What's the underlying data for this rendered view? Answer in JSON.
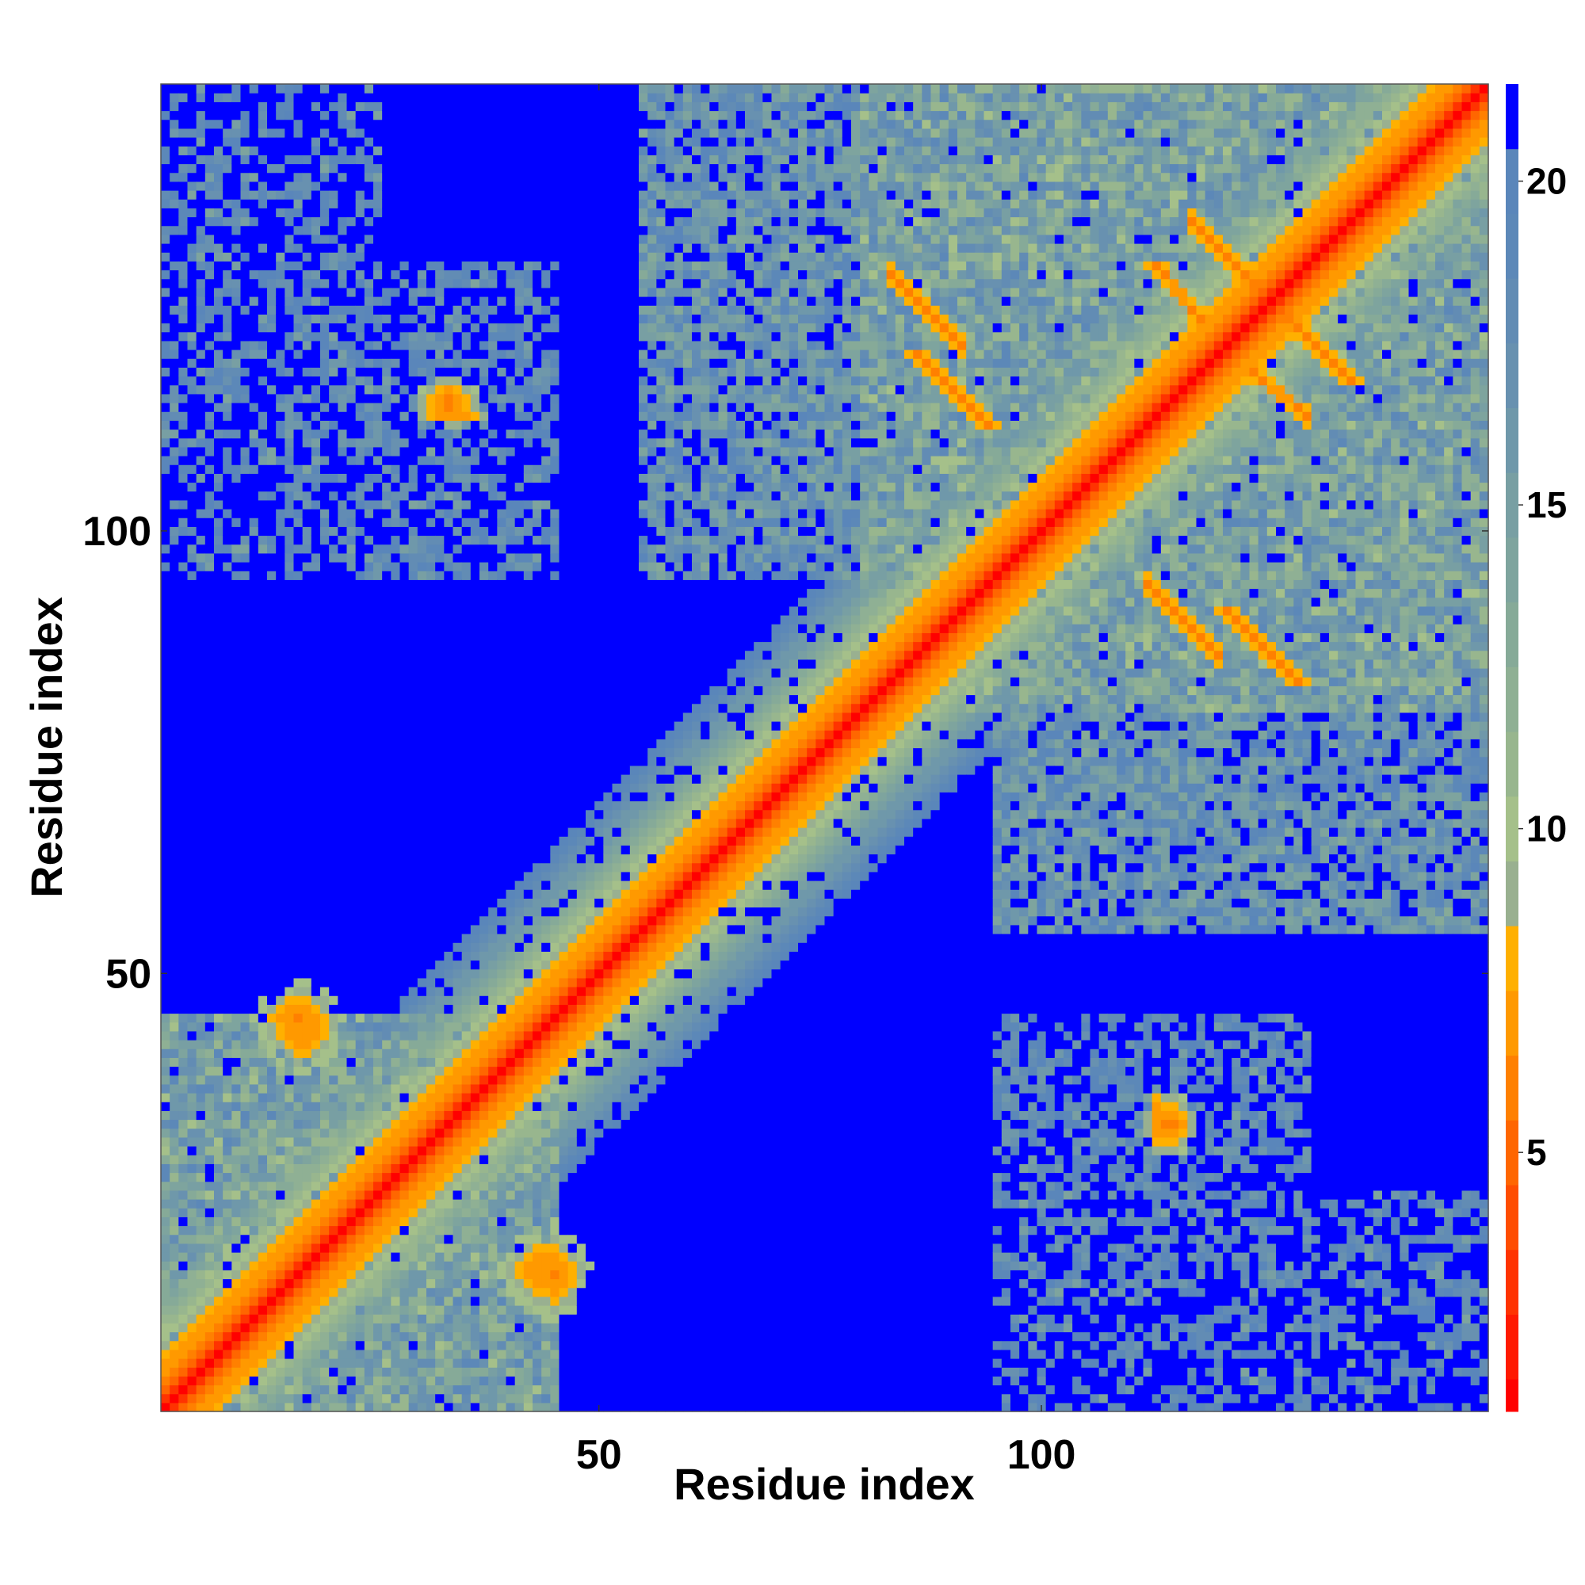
{
  "chart_data": {
    "type": "heatmap",
    "title": "",
    "xlabel": "Residue index",
    "ylabel": "Residue index",
    "n_residues": 150,
    "xlim": [
      1,
      150
    ],
    "ylim": [
      1,
      150
    ],
    "x_ticks": [
      50,
      100
    ],
    "y_ticks": [
      50,
      100
    ],
    "colorbar": {
      "range": [
        1,
        21.5
      ],
      "ticks": [
        5,
        10,
        15,
        20
      ],
      "levels": [
        {
          "max": 1.5,
          "color": "#ff0000"
        },
        {
          "max": 2.5,
          "color": "#ff1a00"
        },
        {
          "max": 3.5,
          "color": "#ff3300"
        },
        {
          "max": 4.5,
          "color": "#ff4d00"
        },
        {
          "max": 5.5,
          "color": "#ff6600"
        },
        {
          "max": 6.5,
          "color": "#ff8000"
        },
        {
          "max": 7.5,
          "color": "#ff9900"
        },
        {
          "max": 8.5,
          "color": "#ffb000"
        },
        {
          "max": 9.5,
          "color": "#99b090"
        },
        {
          "max": 10.5,
          "color": "#a5c08a"
        },
        {
          "max": 11.5,
          "color": "#98b68e"
        },
        {
          "max": 12.5,
          "color": "#8fb094"
        },
        {
          "max": 13.5,
          "color": "#86aa98"
        },
        {
          "max": 14.5,
          "color": "#7ea49e"
        },
        {
          "max": 15.5,
          "color": "#789fa3"
        },
        {
          "max": 16.5,
          "color": "#6f98aa"
        },
        {
          "max": 17.5,
          "color": "#6891b0"
        },
        {
          "max": 18.5,
          "color": "#628cb4"
        },
        {
          "max": 19.5,
          "color": "#5c88b8"
        },
        {
          "max": 20.5,
          "color": "#5a86ba"
        },
        {
          "max": 21.5,
          "color": "#0000ff"
        }
      ]
    },
    "description_of_values": "Pairwise residue distance map; diagonal ~1-3 (red), near-diagonal band 4-12, distant pairs capped at >20 (blue)",
    "contact_features": [
      {
        "i_range": [
          1,
          150
        ],
        "offset": 0,
        "value": 2.5,
        "kind": "diagonal"
      },
      {
        "i_range": [
          1,
          150
        ],
        "offset": 1,
        "value": 5.5,
        "kind": "diagonal-neighbor"
      },
      {
        "i_range": [
          83,
          91
        ],
        "j_range": [
          129,
          121
        ],
        "value": 6.0,
        "kind": "antiparallel-sheet"
      },
      {
        "i_range": [
          112,
          120
        ],
        "j_range": [
          94,
          86
        ],
        "value": 6.0,
        "kind": "antiparallel-sheet"
      },
      {
        "i_range": [
          117,
          124
        ],
        "j_range": [
          135,
          128
        ],
        "value": 6.0,
        "kind": "antiparallel-sheet"
      },
      {
        "i_range": [
          124,
          130
        ],
        "j_range": [
          118,
          113
        ],
        "value": 6.0,
        "kind": "antiparallel-sheet"
      },
      {
        "i_range": [
          31,
          36
        ],
        "j_range": [
          113,
          113
        ],
        "value": 6.5,
        "kind": "contact-patch"
      },
      {
        "i_range": [
          113,
          116
        ],
        "j_range": [
          31,
          35
        ],
        "value": 6.0,
        "kind": "contact-patch"
      },
      {
        "i_range": [
          13,
          19
        ],
        "j_range": [
          43,
          47
        ],
        "value": 6.5,
        "kind": "contact-patch"
      },
      {
        "i_range": [
          41,
          47
        ],
        "j_range": [
          14,
          19
        ],
        "value": 6.5,
        "kind": "contact-patch"
      }
    ]
  }
}
